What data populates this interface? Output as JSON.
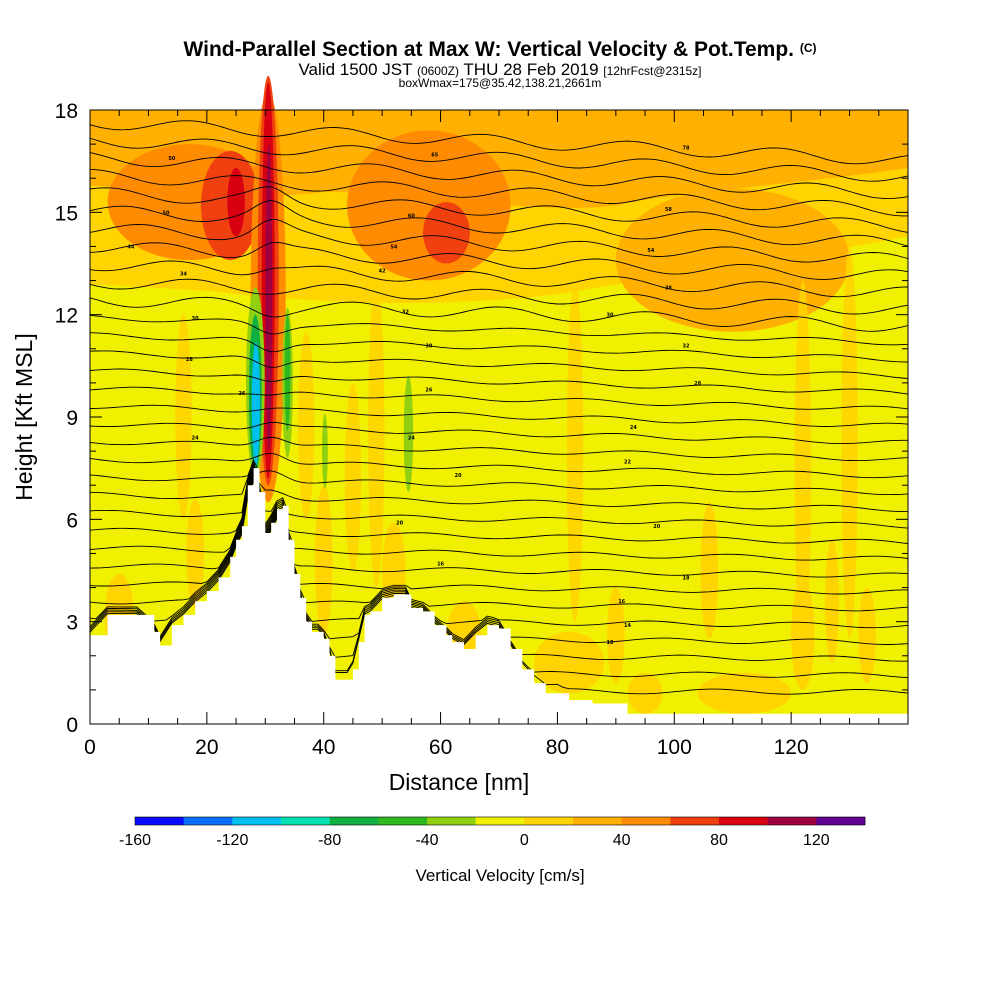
{
  "title": {
    "main": "Wind-Parallel Section at Max W: Vertical Velocity & Pot.Temp.",
    "copyright": "(C)",
    "valid_prefix": "Valid 1500 JST",
    "valid_utc": "(0600Z)",
    "valid_date": "THU 28 Feb 2019",
    "forecast": "[12hrFcst@2315z]",
    "box": "boxWmax=175@35.42,138.21,2661m"
  },
  "chart_data": {
    "type": "heatmap",
    "xlabel": "Distance [nm]",
    "ylabel": "Height [Kft MSL]",
    "xlim": [
      0,
      140
    ],
    "ylim": [
      0,
      18
    ],
    "x_ticks": [
      0,
      20,
      40,
      60,
      80,
      100,
      120
    ],
    "y_ticks": [
      0,
      3,
      6,
      9,
      12,
      15,
      18
    ],
    "colorbar": {
      "label": "Vertical Velocity [cm/s]",
      "tick_labels": [
        -160,
        -120,
        -80,
        -40,
        0,
        40,
        80,
        120
      ],
      "range": [
        -160,
        140
      ],
      "step": 20,
      "colors": [
        "#0a0aff",
        "#0a6eff",
        "#00c0f0",
        "#00e0b0",
        "#10b040",
        "#30b820",
        "#90d010",
        "#f0f000",
        "#ffd400",
        "#ffb000",
        "#ff8c00",
        "#f04010",
        "#d80010",
        "#a00040",
        "#600090"
      ]
    },
    "terrain_height_kft": [
      [
        0,
        2.6
      ],
      [
        3,
        3.2
      ],
      [
        8,
        3.2
      ],
      [
        11,
        2.7
      ],
      [
        12,
        2.3
      ],
      [
        14,
        2.9
      ],
      [
        16,
        3.2
      ],
      [
        18,
        3.6
      ],
      [
        20,
        3.9
      ],
      [
        22,
        4.3
      ],
      [
        24,
        4.9
      ],
      [
        25,
        5.4
      ],
      [
        26,
        5.8
      ],
      [
        27,
        7.0
      ],
      [
        28,
        7.5
      ],
      [
        29,
        6.8
      ],
      [
        30,
        5.6
      ],
      [
        31,
        5.9
      ],
      [
        32,
        6.3
      ],
      [
        33,
        6.4
      ],
      [
        34,
        5.4
      ],
      [
        35,
        4.4
      ],
      [
        36,
        3.7
      ],
      [
        37,
        3.0
      ],
      [
        38,
        2.7
      ],
      [
        39,
        2.7
      ],
      [
        40,
        2.5
      ],
      [
        41,
        2.0
      ],
      [
        42,
        1.3
      ],
      [
        44,
        1.3
      ],
      [
        45,
        1.6
      ],
      [
        46,
        2.4
      ],
      [
        47,
        3.2
      ],
      [
        48,
        3.3
      ],
      [
        50,
        3.7
      ],
      [
        52,
        3.8
      ],
      [
        54,
        3.8
      ],
      [
        55,
        3.4
      ],
      [
        57,
        3.3
      ],
      [
        59,
        2.9
      ],
      [
        61,
        2.6
      ],
      [
        62,
        2.4
      ],
      [
        64,
        2.2
      ],
      [
        66,
        2.6
      ],
      [
        68,
        2.9
      ],
      [
        70,
        2.8
      ],
      [
        72,
        2.2
      ],
      [
        74,
        1.6
      ],
      [
        76,
        1.2
      ],
      [
        78,
        0.9
      ],
      [
        80,
        0.9
      ],
      [
        82,
        0.7
      ],
      [
        86,
        0.6
      ],
      [
        92,
        0.3
      ],
      [
        100,
        0.3
      ],
      [
        140,
        0.3
      ]
    ],
    "theta_contour_labels": [
      {
        "x": 14,
        "y": 16.6,
        "text": "50"
      },
      {
        "x": 13,
        "y": 15.0,
        "text": "50"
      },
      {
        "x": 7,
        "y": 14.0,
        "text": "44"
      },
      {
        "x": 16,
        "y": 13.2,
        "text": "34"
      },
      {
        "x": 18,
        "y": 11.9,
        "text": "30"
      },
      {
        "x": 17,
        "y": 10.7,
        "text": "28"
      },
      {
        "x": 26,
        "y": 9.7,
        "text": "26"
      },
      {
        "x": 18,
        "y": 8.4,
        "text": "24"
      },
      {
        "x": 59,
        "y": 16.7,
        "text": "65"
      },
      {
        "x": 55,
        "y": 14.9,
        "text": "60"
      },
      {
        "x": 52,
        "y": 14.0,
        "text": "54"
      },
      {
        "x": 50,
        "y": 13.3,
        "text": "42"
      },
      {
        "x": 54,
        "y": 12.1,
        "text": "32"
      },
      {
        "x": 58,
        "y": 11.1,
        "text": "30"
      },
      {
        "x": 58,
        "y": 9.8,
        "text": "26"
      },
      {
        "x": 55,
        "y": 8.4,
        "text": "24"
      },
      {
        "x": 63,
        "y": 7.3,
        "text": "20"
      },
      {
        "x": 53,
        "y": 5.9,
        "text": "20"
      },
      {
        "x": 60,
        "y": 4.7,
        "text": "16"
      },
      {
        "x": 102,
        "y": 16.9,
        "text": "78"
      },
      {
        "x": 99,
        "y": 15.1,
        "text": "58"
      },
      {
        "x": 96,
        "y": 13.9,
        "text": "54"
      },
      {
        "x": 99,
        "y": 12.8,
        "text": "38"
      },
      {
        "x": 89,
        "y": 12.0,
        "text": "30"
      },
      {
        "x": 102,
        "y": 11.1,
        "text": "32"
      },
      {
        "x": 104,
        "y": 10.0,
        "text": "28"
      },
      {
        "x": 93,
        "y": 8.7,
        "text": "24"
      },
      {
        "x": 92,
        "y": 7.7,
        "text": "22"
      },
      {
        "x": 97,
        "y": 5.8,
        "text": "20"
      },
      {
        "x": 102,
        "y": 4.3,
        "text": "18"
      },
      {
        "x": 91,
        "y": 3.6,
        "text": "16"
      },
      {
        "x": 92,
        "y": 2.9,
        "text": "14"
      },
      {
        "x": 89,
        "y": 2.4,
        "text": "10"
      }
    ]
  }
}
